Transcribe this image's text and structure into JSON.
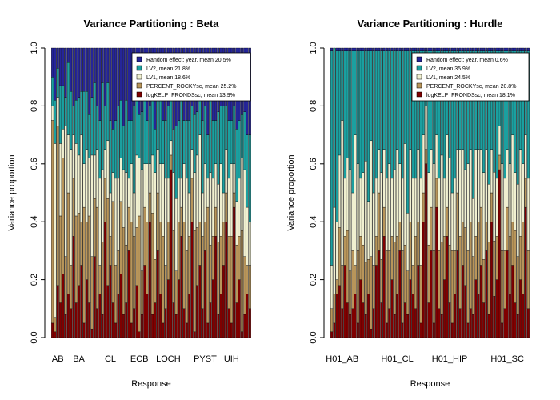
{
  "chart_data": [
    {
      "type": "bar",
      "stacked": true,
      "title": "Variance Partitioning : Beta",
      "xlabel": "Response",
      "ylabel": "Variance proportion",
      "ylim": [
        0,
        1
      ],
      "yticks": [
        "0.0",
        "0.2",
        "0.4",
        "0.6",
        "0.8",
        "1.0"
      ],
      "xtick_labels": [
        "AB",
        "BA",
        "CL",
        "ECB",
        "LOCH",
        "PYST",
        "UIH"
      ],
      "xtick_bar_index": [
        2,
        10,
        22,
        33,
        44,
        58,
        68
      ],
      "n_bars": 76,
      "legend": "top-right",
      "series": [
        {
          "name": "logKELP_FRONDSsc, mean 13.9%",
          "color": "#800000",
          "values": [
            0.05,
            0.02,
            0.18,
            0.12,
            0.22,
            0.08,
            0.15,
            0.1,
            0.35,
            0.12,
            0.18,
            0.25,
            0.05,
            0.2,
            0.12,
            0.03,
            0.28,
            0.1,
            0.15,
            0.08,
            0.4,
            0.18,
            0.25,
            0.12,
            0.05,
            0.15,
            0.22,
            0.08,
            0.12,
            0.3,
            0.05,
            0.1,
            0.18,
            0.02,
            0.08,
            0.25,
            0.15,
            0.4,
            0.08,
            0.12,
            0.3,
            0.15,
            0.05,
            0.1,
            0.2,
            0.58,
            0.12,
            0.08,
            0.2,
            0.35,
            0.1,
            0.05,
            0.15,
            0.4,
            0.02,
            0.18,
            0.25,
            0.1,
            0.3,
            0.05,
            0.12,
            0.2,
            0.35,
            0.08,
            0.15,
            0.25,
            0.4,
            0.1,
            0.05,
            0.45,
            0.12,
            0.2,
            0.02,
            0.08,
            0.15,
            0.1
          ]
        },
        {
          "name": "PERCENT_ROCKYsc, mean 25.2%",
          "color": "#B8955A",
          "values": [
            0.7,
            0.05,
            0.55,
            0.3,
            0.4,
            0.2,
            0.35,
            0.15,
            0.2,
            0.3,
            0.25,
            0.15,
            0.4,
            0.2,
            0.3,
            0.25,
            0.2,
            0.35,
            0.1,
            0.25,
            0.15,
            0.3,
            0.1,
            0.35,
            0.2,
            0.15,
            0.25,
            0.3,
            0.2,
            0.15,
            0.35,
            0.25,
            0.2,
            0.4,
            0.15,
            0.2,
            0.25,
            0.1,
            0.35,
            0.15,
            0.2,
            0.25,
            0.3,
            0.15,
            0.2,
            0.05,
            0.25,
            0.15,
            0.2,
            0.1,
            0.3,
            0.25,
            0.2,
            0.15,
            0.35,
            0.2,
            0.15,
            0.25,
            0.1,
            0.4,
            0.2,
            0.15,
            0.1,
            0.25,
            0.2,
            0.15,
            0.1,
            0.25,
            0.3,
            0.05,
            0.2,
            0.15,
            0.35,
            0.2,
            0.1,
            0.15
          ]
        },
        {
          "name": "LV1, mean 18.6%",
          "color": "#F0F0D0",
          "values": [
            0.05,
            0.6,
            0.1,
            0.25,
            0.1,
            0.45,
            0.2,
            0.4,
            0.15,
            0.25,
            0.2,
            0.3,
            0.15,
            0.25,
            0.2,
            0.35,
            0.15,
            0.2,
            0.3,
            0.25,
            0.1,
            0.2,
            0.15,
            0.1,
            0.3,
            0.25,
            0.15,
            0.2,
            0.25,
            0.1,
            0.2,
            0.15,
            0.25,
            0.2,
            0.35,
            0.15,
            0.2,
            0.1,
            0.2,
            0.3,
            0.15,
            0.2,
            0.25,
            0.3,
            0.15,
            0.05,
            0.2,
            0.25,
            0.15,
            0.1,
            0.2,
            0.25,
            0.15,
            0.1,
            0.2,
            0.25,
            0.3,
            0.15,
            0.2,
            0.1,
            0.25,
            0.2,
            0.15,
            0.2,
            0.25,
            0.1,
            0.15,
            0.2,
            0.25,
            0.1,
            0.15,
            0.2,
            0.25,
            0.3,
            0.2,
            0.15
          ]
        },
        {
          "name": "LV2, mean 21.8%",
          "color": "#1BA0A0",
          "values": [
            0.1,
            0.15,
            0.1,
            0.2,
            0.15,
            0.1,
            0.25,
            0.2,
            0.1,
            0.15,
            0.2,
            0.15,
            0.25,
            0.2,
            0.15,
            0.2,
            0.25,
            0.15,
            0.2,
            0.3,
            0.15,
            0.2,
            0.25,
            0.15,
            0.2,
            0.25,
            0.2,
            0.15,
            0.25,
            0.2,
            0.15,
            0.3,
            0.2,
            0.15,
            0.2,
            0.25,
            0.15,
            0.2,
            0.25,
            0.15,
            0.2,
            0.25,
            0.15,
            0.2,
            0.25,
            0.2,
            0.15,
            0.25,
            0.2,
            0.3,
            0.15,
            0.2,
            0.25,
            0.15,
            0.2,
            0.15,
            0.2,
            0.25,
            0.2,
            0.15,
            0.25,
            0.2,
            0.15,
            0.25,
            0.2,
            0.3,
            0.15,
            0.2,
            0.15,
            0.2,
            0.25,
            0.2,
            0.15,
            0.2,
            0.25,
            0.3
          ]
        },
        {
          "name": "Random effect: year, mean 20.5%",
          "color": "#25259A",
          "values": [
            0.1,
            0.18,
            0.07,
            0.13,
            0.13,
            0.17,
            0.05,
            0.15,
            0.2,
            0.18,
            0.17,
            0.15,
            0.15,
            0.15,
            0.23,
            0.17,
            0.12,
            0.2,
            0.25,
            0.12,
            0.2,
            0.12,
            0.25,
            0.28,
            0.25,
            0.2,
            0.18,
            0.27,
            0.18,
            0.25,
            0.25,
            0.2,
            0.17,
            0.23,
            0.22,
            0.15,
            0.25,
            0.2,
            0.12,
            0.28,
            0.15,
            0.15,
            0.25,
            0.25,
            0.2,
            0.12,
            0.28,
            0.27,
            0.25,
            0.15,
            0.25,
            0.25,
            0.25,
            0.2,
            0.23,
            0.22,
            0.1,
            0.25,
            0.2,
            0.3,
            0.18,
            0.25,
            0.25,
            0.22,
            0.2,
            0.2,
            0.2,
            0.25,
            0.25,
            0.2,
            0.28,
            0.25,
            0.23,
            0.22,
            0.3,
            0.3
          ]
        }
      ]
    },
    {
      "type": "bar",
      "stacked": true,
      "title": "Variance Partitioning : Hurdle",
      "xlabel": "Response",
      "ylabel": "Variance proportion",
      "ylim": [
        0,
        1
      ],
      "yticks": [
        "0.0",
        "0.2",
        "0.4",
        "0.6",
        "0.8",
        "1.0"
      ],
      "xtick_labels": [
        "H01_AB",
        "H01_CL",
        "H01_HIP",
        "H01_SC"
      ],
      "xtick_bar_index": [
        4,
        25,
        45,
        67
      ],
      "n_bars": 76,
      "legend": "top-right",
      "series": [
        {
          "name": "logKELP_FRONDSsc, mean 18.1%",
          "color": "#800000",
          "values": [
            0.02,
            0.05,
            0.15,
            0.18,
            0.1,
            0.25,
            0.12,
            0.08,
            0.1,
            0.15,
            0.05,
            0.2,
            0.12,
            0.08,
            0.15,
            0.03,
            0.1,
            0.25,
            0.3,
            0.12,
            0.35,
            0.05,
            0.1,
            0.2,
            0.08,
            0.15,
            0.3,
            0.05,
            0.12,
            0.08,
            0.2,
            0.15,
            0.1,
            0.25,
            0.05,
            0.4,
            0.6,
            0.12,
            0.3,
            0.05,
            0.45,
            0.1,
            0.08,
            0.2,
            0.35,
            0.12,
            0.05,
            0.15,
            0.3,
            0.1,
            0.25,
            0.18,
            0.05,
            0.1,
            0.08,
            0.2,
            0.15,
            0.25,
            0.12,
            0.3,
            0.08,
            0.4,
            0.15,
            0.2,
            0.58,
            0.05,
            0.1,
            0.3,
            0.15,
            0.25,
            0.12,
            0.08,
            0.2,
            0.15,
            0.45,
            0.1
          ]
        },
        {
          "name": "PERCENT_ROCKYsc, mean 20.8%",
          "color": "#B8955A",
          "values": [
            0.08,
            0.1,
            0.05,
            0.2,
            0.15,
            0.1,
            0.25,
            0.15,
            0.2,
            0.1,
            0.25,
            0.15,
            0.2,
            0.18,
            0.12,
            0.25,
            0.15,
            0.1,
            0.2,
            0.15,
            0.1,
            0.25,
            0.2,
            0.15,
            0.25,
            0.2,
            0.1,
            0.25,
            0.2,
            0.15,
            0.2,
            0.1,
            0.25,
            0.15,
            0.2,
            0.1,
            0.05,
            0.2,
            0.15,
            0.25,
            0.1,
            0.2,
            0.25,
            0.15,
            0.1,
            0.2,
            0.25,
            0.15,
            0.2,
            0.25,
            0.15,
            0.2,
            0.25,
            0.3,
            0.2,
            0.15,
            0.25,
            0.2,
            0.15,
            0.1,
            0.25,
            0.1,
            0.2,
            0.15,
            0.05,
            0.25,
            0.2,
            0.15,
            0.2,
            0.15,
            0.25,
            0.2,
            0.15,
            0.25,
            0.1,
            0.2
          ]
        },
        {
          "name": "LV1, mean 24.5%",
          "color": "#F0F0D0",
          "values": [
            0.15,
            0.3,
            0.2,
            0.25,
            0.5,
            0.2,
            0.25,
            0.35,
            0.2,
            0.45,
            0.3,
            0.2,
            0.25,
            0.35,
            0.2,
            0.4,
            0.25,
            0.2,
            0.15,
            0.3,
            0.2,
            0.25,
            0.3,
            0.2,
            0.25,
            0.3,
            0.2,
            0.25,
            0.35,
            0.2,
            0.25,
            0.3,
            0.2,
            0.25,
            0.3,
            0.2,
            0.15,
            0.25,
            0.2,
            0.3,
            0.15,
            0.25,
            0.3,
            0.2,
            0.25,
            0.3,
            0.2,
            0.25,
            0.15,
            0.3,
            0.25,
            0.2,
            0.3,
            0.25,
            0.2,
            0.3,
            0.25,
            0.2,
            0.3,
            0.25,
            0.2,
            0.15,
            0.25,
            0.2,
            0.1,
            0.3,
            0.25,
            0.2,
            0.25,
            0.3,
            0.2,
            0.25,
            0.3,
            0.2,
            0.15,
            0.25
          ]
        },
        {
          "name": "LV2, mean 35.9%",
          "color": "#1BA0A0",
          "values": [
            0.74,
            0.55,
            0.59,
            0.36,
            0.24,
            0.44,
            0.37,
            0.41,
            0.49,
            0.29,
            0.39,
            0.44,
            0.42,
            0.38,
            0.52,
            0.31,
            0.49,
            0.44,
            0.34,
            0.42,
            0.34,
            0.44,
            0.39,
            0.44,
            0.41,
            0.34,
            0.39,
            0.44,
            0.32,
            0.56,
            0.34,
            0.44,
            0.44,
            0.34,
            0.44,
            0.29,
            0.19,
            0.42,
            0.34,
            0.39,
            0.29,
            0.44,
            0.36,
            0.44,
            0.29,
            0.37,
            0.49,
            0.44,
            0.34,
            0.34,
            0.34,
            0.41,
            0.39,
            0.34,
            0.51,
            0.34,
            0.34,
            0.34,
            0.42,
            0.34,
            0.46,
            0.34,
            0.44,
            0.44,
            0.26,
            0.39,
            0.44,
            0.34,
            0.39,
            0.29,
            0.42,
            0.46,
            0.34,
            0.39,
            0.29,
            0.44
          ]
        },
        {
          "name": "Random effect: year, mean 0.6%",
          "color": "#25259A",
          "values": [
            0.01,
            0.0,
            0.01,
            0.01,
            0.01,
            0.01,
            0.01,
            0.01,
            0.01,
            0.01,
            0.01,
            0.01,
            0.01,
            0.01,
            0.01,
            0.01,
            0.01,
            0.01,
            0.01,
            0.01,
            0.01,
            0.01,
            0.01,
            0.01,
            0.01,
            0.01,
            0.01,
            0.01,
            0.01,
            0.01,
            0.01,
            0.01,
            0.01,
            0.01,
            0.01,
            0.01,
            0.01,
            0.01,
            0.01,
            0.01,
            0.01,
            0.01,
            0.01,
            0.01,
            0.01,
            0.01,
            0.01,
            0.01,
            0.01,
            0.01,
            0.01,
            0.01,
            0.01,
            0.01,
            0.01,
            0.01,
            0.01,
            0.01,
            0.01,
            0.01,
            0.01,
            0.01,
            0.01,
            0.01,
            0.01,
            0.01,
            0.01,
            0.01,
            0.01,
            0.01,
            0.01,
            0.01,
            0.01,
            0.01,
            0.01,
            0.01
          ]
        }
      ]
    }
  ]
}
